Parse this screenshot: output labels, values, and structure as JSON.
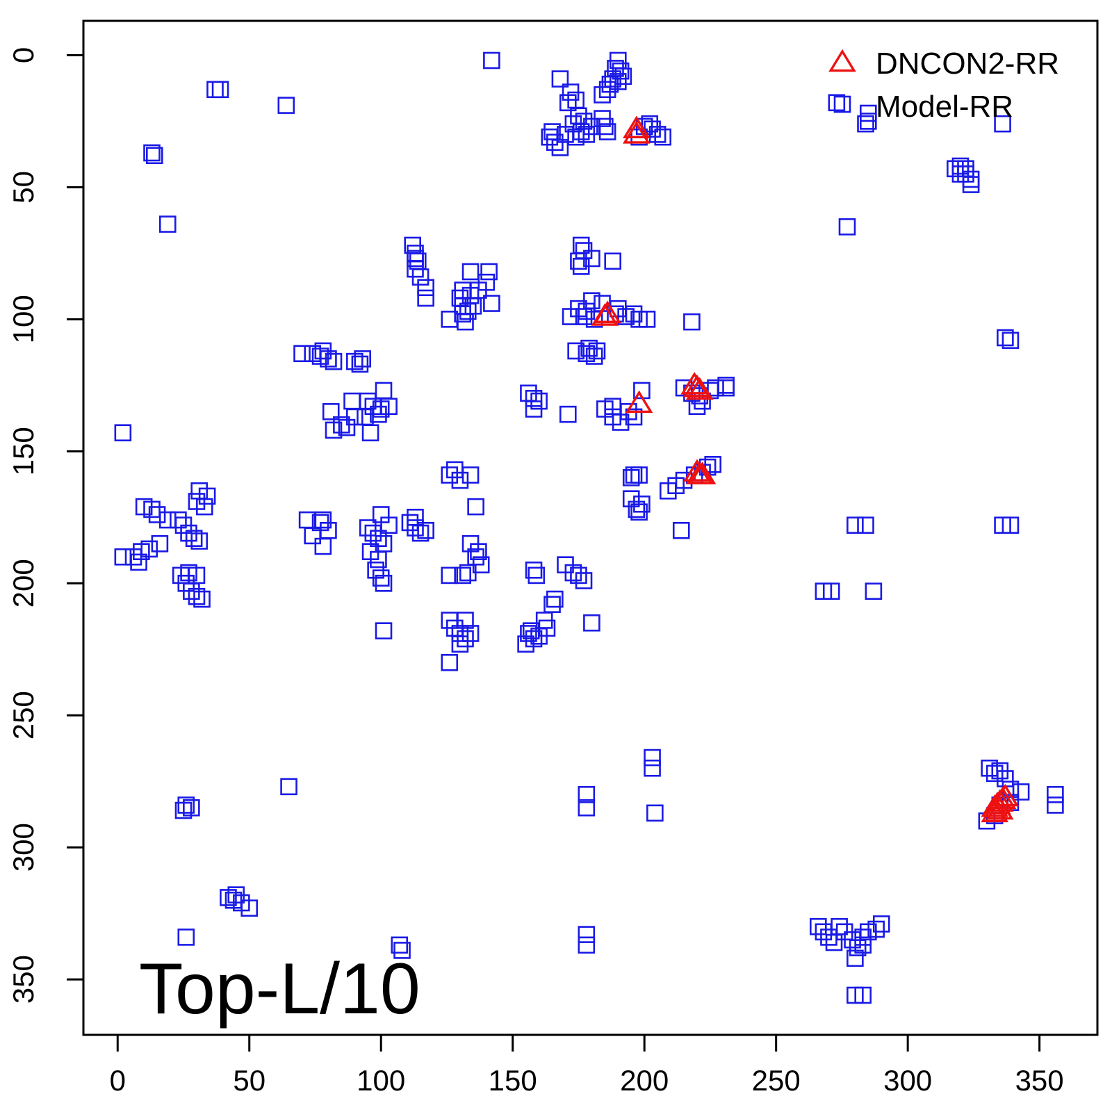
{
  "chart_data": {
    "type": "scatter",
    "title": "",
    "xlabel": "",
    "ylabel": "",
    "xlim": [
      -13,
      372
    ],
    "ylim": [
      -13,
      371
    ],
    "y_reversed": true,
    "x_ticks": [
      0,
      50,
      100,
      150,
      200,
      250,
      300,
      350
    ],
    "y_ticks": [
      0,
      50,
      100,
      150,
      200,
      250,
      300,
      350
    ],
    "x_tick_labels": [
      "0",
      "50",
      "100",
      "150",
      "200",
      "250",
      "300",
      "350"
    ],
    "y_tick_labels": [
      "0",
      "50",
      "100",
      "150",
      "200",
      "250",
      "300",
      "350"
    ],
    "annotation": "Top-L/10",
    "legend_position": "top-right",
    "series": [
      {
        "name": "DNCON2-RR",
        "marker": "triangle",
        "color": "#ee1111",
        "points": [
          [
            197,
            28
          ],
          [
            197,
            30
          ],
          [
            186,
            98
          ],
          [
            185,
            99
          ],
          [
            198,
            132
          ],
          [
            219,
            125
          ],
          [
            220,
            126
          ],
          [
            221,
            127
          ],
          [
            220,
            158
          ],
          [
            221,
            159
          ],
          [
            222,
            159
          ],
          [
            333,
            285
          ],
          [
            334,
            284
          ],
          [
            335,
            283
          ],
          [
            336,
            282
          ],
          [
            337,
            281
          ],
          [
            333,
            287
          ],
          [
            335,
            286
          ]
        ]
      },
      {
        "name": "Model-RR",
        "marker": "square",
        "color": "#1a1ae6",
        "points": [
          [
            142,
            2
          ],
          [
            37,
            13
          ],
          [
            39,
            13
          ],
          [
            64,
            19
          ],
          [
            13,
            37
          ],
          [
            14,
            38
          ],
          [
            19,
            64
          ],
          [
            2,
            143
          ],
          [
            190,
            2
          ],
          [
            189,
            5
          ],
          [
            191,
            6
          ],
          [
            188,
            9
          ],
          [
            192,
            8
          ],
          [
            187,
            11
          ],
          [
            190,
            10
          ],
          [
            184,
            15
          ],
          [
            186,
            13
          ],
          [
            168,
            9
          ],
          [
            172,
            14
          ],
          [
            174,
            17
          ],
          [
            171,
            18
          ],
          [
            175,
            23
          ],
          [
            177,
            25
          ],
          [
            180,
            27
          ],
          [
            176,
            29
          ],
          [
            185,
            27
          ],
          [
            186,
            29
          ],
          [
            184,
            24
          ],
          [
            174,
            31
          ],
          [
            173,
            26
          ],
          [
            178,
            30
          ],
          [
            164,
            31
          ],
          [
            166,
            33
          ],
          [
            168,
            35
          ],
          [
            165,
            29
          ],
          [
            170,
            30
          ],
          [
            198,
            31
          ],
          [
            200,
            27
          ],
          [
            203,
            28
          ],
          [
            205,
            30
          ],
          [
            207,
            31
          ],
          [
            202,
            26
          ],
          [
            273,
            18
          ],
          [
            285,
            22
          ],
          [
            284,
            26
          ],
          [
            285,
            25
          ],
          [
            318,
            43
          ],
          [
            320,
            42
          ],
          [
            322,
            45
          ],
          [
            324,
            47
          ],
          [
            324,
            49
          ],
          [
            322,
            43
          ],
          [
            320,
            45
          ],
          [
            336,
            26
          ],
          [
            277,
            65
          ],
          [
            112,
            72
          ],
          [
            113,
            75
          ],
          [
            114,
            78
          ],
          [
            113,
            81
          ],
          [
            115,
            84
          ],
          [
            113,
            77
          ],
          [
            117,
            88
          ],
          [
            117,
            92
          ],
          [
            134,
            82
          ],
          [
            141,
            82
          ],
          [
            140,
            86
          ],
          [
            142,
            94
          ],
          [
            137,
            89
          ],
          [
            134,
            91
          ],
          [
            131,
            89
          ],
          [
            130,
            92
          ],
          [
            131,
            95
          ],
          [
            131,
            98
          ],
          [
            133,
            97
          ],
          [
            135,
            95
          ],
          [
            132,
            101
          ],
          [
            126,
            100
          ],
          [
            176,
            72
          ],
          [
            177,
            74
          ],
          [
            175,
            78
          ],
          [
            180,
            77
          ],
          [
            188,
            78
          ],
          [
            176,
            80
          ],
          [
            180,
            93
          ],
          [
            184,
            94
          ],
          [
            190,
            96
          ],
          [
            189,
            98
          ],
          [
            181,
            100
          ],
          [
            178,
            97
          ],
          [
            172,
            99
          ],
          [
            175,
            96
          ],
          [
            177,
            99
          ],
          [
            193,
            99
          ],
          [
            196,
            98
          ],
          [
            198,
            100
          ],
          [
            201,
            100
          ],
          [
            218,
            101
          ],
          [
            70,
            113
          ],
          [
            74,
            113
          ],
          [
            77,
            114
          ],
          [
            80,
            115
          ],
          [
            82,
            116
          ],
          [
            78,
            112
          ],
          [
            90,
            116
          ],
          [
            92,
            117
          ],
          [
            93,
            115
          ],
          [
            174,
            112
          ],
          [
            179,
            111
          ],
          [
            182,
            112
          ],
          [
            181,
            114
          ],
          [
            178,
            113
          ],
          [
            89,
            131
          ],
          [
            95,
            131
          ],
          [
            101,
            127
          ],
          [
            103,
            133
          ],
          [
            99,
            136
          ],
          [
            97,
            133
          ],
          [
            94,
            137
          ],
          [
            90,
            137
          ],
          [
            87,
            141
          ],
          [
            85,
            140
          ],
          [
            82,
            142
          ],
          [
            81,
            135
          ],
          [
            96,
            143
          ],
          [
            100,
            134
          ],
          [
            156,
            128
          ],
          [
            158,
            130
          ],
          [
            160,
            131
          ],
          [
            158,
            134
          ],
          [
            171,
            136
          ],
          [
            199,
            127
          ],
          [
            185,
            134
          ],
          [
            188,
            137
          ],
          [
            191,
            139
          ],
          [
            194,
            135
          ],
          [
            196,
            137
          ],
          [
            188,
            133
          ],
          [
            215,
            126
          ],
          [
            218,
            128
          ],
          [
            221,
            129
          ],
          [
            220,
            133
          ],
          [
            222,
            131
          ],
          [
            225,
            127
          ],
          [
            227,
            126
          ],
          [
            231,
            126
          ],
          [
            231,
            125
          ],
          [
            199,
            170
          ],
          [
            198,
            173
          ],
          [
            197,
            172
          ],
          [
            195,
            168
          ],
          [
            195,
            160
          ],
          [
            196,
            159
          ],
          [
            198,
            159
          ],
          [
            209,
            165
          ],
          [
            212,
            163
          ],
          [
            215,
            161
          ],
          [
            219,
            159
          ],
          [
            222,
            158
          ],
          [
            224,
            156
          ],
          [
            226,
            155
          ],
          [
            214,
            180
          ],
          [
            126,
            159
          ],
          [
            128,
            157
          ],
          [
            130,
            161
          ],
          [
            134,
            159
          ],
          [
            136,
            171
          ],
          [
            6,
            190
          ],
          [
            9,
            188
          ],
          [
            12,
            187
          ],
          [
            16,
            185
          ],
          [
            2,
            190
          ],
          [
            8,
            192
          ],
          [
            10,
            171
          ],
          [
            13,
            172
          ],
          [
            15,
            174
          ],
          [
            19,
            176
          ],
          [
            23,
            176
          ],
          [
            25,
            178
          ],
          [
            27,
            181
          ],
          [
            29,
            183
          ],
          [
            31,
            184
          ],
          [
            31,
            165
          ],
          [
            34,
            167
          ],
          [
            33,
            171
          ],
          [
            30,
            169
          ],
          [
            24,
            197
          ],
          [
            26,
            200
          ],
          [
            28,
            203
          ],
          [
            30,
            205
          ],
          [
            32,
            206
          ],
          [
            27,
            196
          ],
          [
            30,
            197
          ],
          [
            72,
            176
          ],
          [
            77,
            177
          ],
          [
            78,
            186
          ],
          [
            80,
            180
          ],
          [
            74,
            182
          ],
          [
            78,
            176
          ],
          [
            95,
            179
          ],
          [
            97,
            181
          ],
          [
            99,
            183
          ],
          [
            101,
            185
          ],
          [
            103,
            178
          ],
          [
            100,
            174
          ],
          [
            96,
            188
          ],
          [
            99,
            191
          ],
          [
            98,
            195
          ],
          [
            100,
            198
          ],
          [
            101,
            200
          ],
          [
            101,
            218
          ],
          [
            111,
            177
          ],
          [
            113,
            179
          ],
          [
            115,
            181
          ],
          [
            117,
            180
          ],
          [
            113,
            175
          ],
          [
            134,
            185
          ],
          [
            136,
            190
          ],
          [
            138,
            193
          ],
          [
            131,
            197
          ],
          [
            133,
            196
          ],
          [
            126,
            197
          ],
          [
            137,
            188
          ],
          [
            126,
            214
          ],
          [
            128,
            217
          ],
          [
            130,
            219
          ],
          [
            132,
            221
          ],
          [
            130,
            223
          ],
          [
            126,
            230
          ],
          [
            134,
            219
          ],
          [
            132,
            214
          ],
          [
            156,
            219
          ],
          [
            158,
            221
          ],
          [
            160,
            220
          ],
          [
            162,
            214
          ],
          [
            165,
            208
          ],
          [
            166,
            206
          ],
          [
            155,
            223
          ],
          [
            157,
            218
          ],
          [
            163,
            217
          ],
          [
            170,
            193
          ],
          [
            173,
            196
          ],
          [
            175,
            197
          ],
          [
            177,
            199
          ],
          [
            158,
            195
          ],
          [
            159,
            197
          ],
          [
            180,
            215
          ],
          [
            203,
            266
          ],
          [
            203,
            270
          ],
          [
            204,
            287
          ],
          [
            178,
            280
          ],
          [
            178,
            285
          ],
          [
            178,
            333
          ],
          [
            178,
            337
          ],
          [
            65,
            277
          ],
          [
            26,
            284
          ],
          [
            28,
            285
          ],
          [
            25,
            286
          ],
          [
            26,
            334
          ],
          [
            42,
            319
          ],
          [
            44,
            320
          ],
          [
            47,
            321
          ],
          [
            50,
            323
          ],
          [
            45,
            318
          ],
          [
            107,
            337
          ],
          [
            108,
            339
          ],
          [
            331,
            270
          ],
          [
            333,
            272
          ],
          [
            335,
            271
          ],
          [
            337,
            274
          ],
          [
            339,
            278
          ],
          [
            343,
            279
          ],
          [
            335,
            284
          ],
          [
            333,
            288
          ],
          [
            330,
            290
          ],
          [
            339,
            283
          ],
          [
            356,
            280
          ],
          [
            356,
            284
          ],
          [
            337,
            107
          ],
          [
            339,
            108
          ],
          [
            336,
            178
          ],
          [
            339,
            178
          ],
          [
            280,
            178
          ],
          [
            284,
            178
          ],
          [
            268,
            203
          ],
          [
            271,
            203
          ],
          [
            287,
            203
          ],
          [
            266,
            330
          ],
          [
            268,
            332
          ],
          [
            270,
            334
          ],
          [
            272,
            336
          ],
          [
            274,
            330
          ],
          [
            276,
            332
          ],
          [
            279,
            335
          ],
          [
            281,
            338
          ],
          [
            283,
            334
          ],
          [
            285,
            332
          ],
          [
            288,
            331
          ],
          [
            290,
            329
          ],
          [
            283,
            337
          ],
          [
            280,
            342
          ],
          [
            280,
            356
          ],
          [
            283,
            356
          ]
        ]
      }
    ]
  }
}
